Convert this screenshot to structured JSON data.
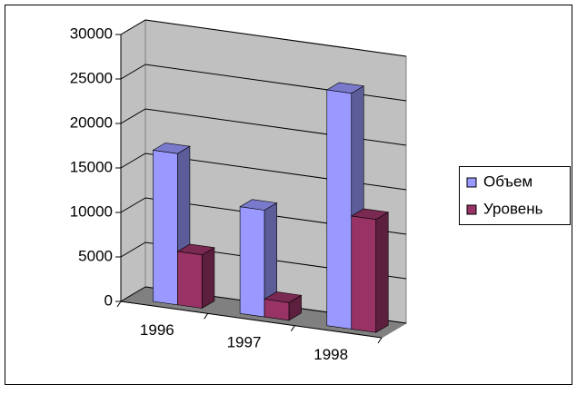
{
  "chart_data": {
    "type": "bar",
    "categories": [
      "1996",
      "1997",
      "1998"
    ],
    "series": [
      {
        "name": "Объем",
        "color": "#9999ff",
        "values": [
          17000,
          12000,
          26500
        ]
      },
      {
        "name": "Уровень",
        "color": "#993366",
        "values": [
          6000,
          2000,
          12700
        ]
      }
    ],
    "ylim": [
      0,
      30000
    ],
    "yticks": [
      0,
      5000,
      10000,
      15000,
      20000,
      25000,
      30000
    ],
    "grid": true,
    "legend": "right"
  }
}
